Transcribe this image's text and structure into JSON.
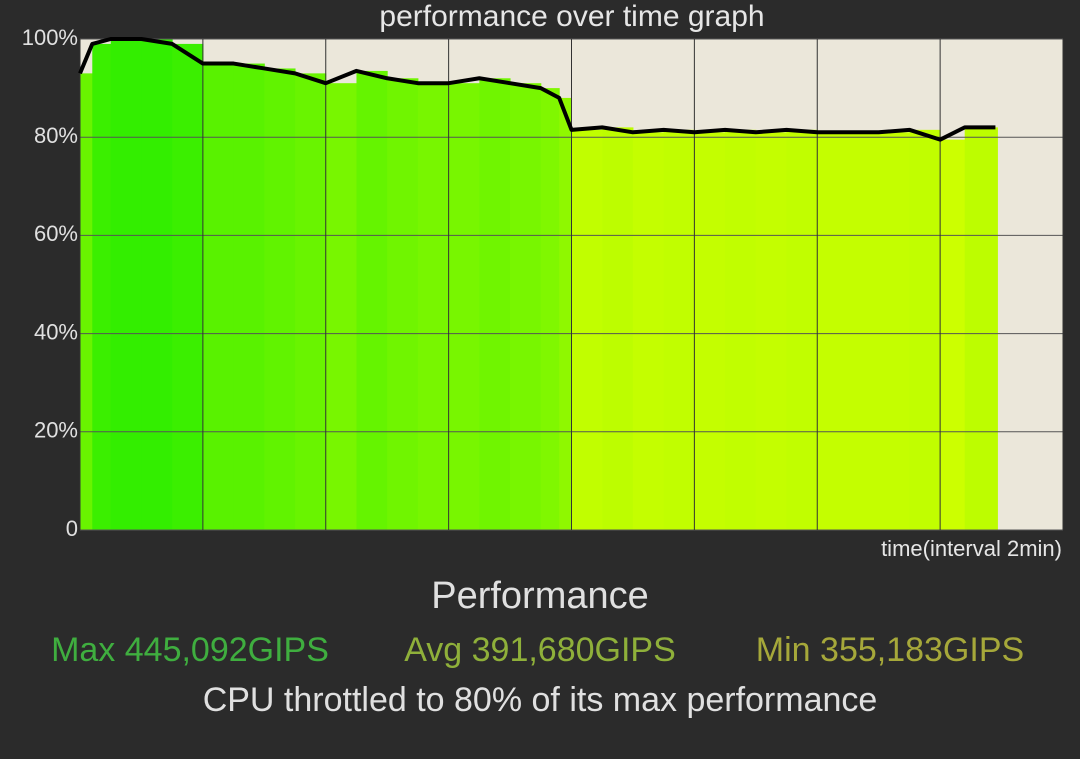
{
  "chart_data": {
    "type": "area-line",
    "title": "performance over time graph",
    "x_label": "time(interval 2min)",
    "x": [
      0,
      0.1,
      0.25,
      0.5,
      0.75,
      1,
      1.25,
      1.5,
      1.75,
      2,
      2.25,
      2.5,
      2.75,
      3,
      3.25,
      3.5,
      3.75,
      3.9,
      4.0,
      4.25,
      4.5,
      4.75,
      5,
      5.25,
      5.5,
      5.75,
      6,
      6.25,
      6.5,
      6.75,
      7,
      7.2,
      7.45
    ],
    "values": [
      93,
      99,
      100,
      100,
      99,
      95,
      95,
      94,
      93,
      91,
      93.5,
      92,
      91,
      91,
      92,
      91,
      90,
      88,
      81.5,
      82,
      81,
      81.5,
      81,
      81.5,
      81,
      81.5,
      81,
      81,
      81,
      81.5,
      79.5,
      82,
      82
    ],
    "line_color": "#000000",
    "xlim": [
      0,
      8
    ],
    "xticks": [
      0,
      1,
      2,
      3,
      4,
      5,
      6,
      7,
      8
    ],
    "ylim": [
      0,
      100
    ],
    "yticks": [
      0,
      {
        "value": 20,
        "label": "20%"
      },
      {
        "value": 40,
        "label": "40%"
      },
      {
        "value": 60,
        "label": "60%"
      },
      {
        "value": 80,
        "label": "80%"
      },
      {
        "value": 100,
        "label": "100%"
      }
    ],
    "grid": true
  },
  "summary": {
    "heading": "Performance",
    "max": "Max 445,092GIPS",
    "avg": "Avg 391,680GIPS",
    "min": "Min 355,183GIPS",
    "message": "CPU throttled to 80% of its max performance"
  }
}
